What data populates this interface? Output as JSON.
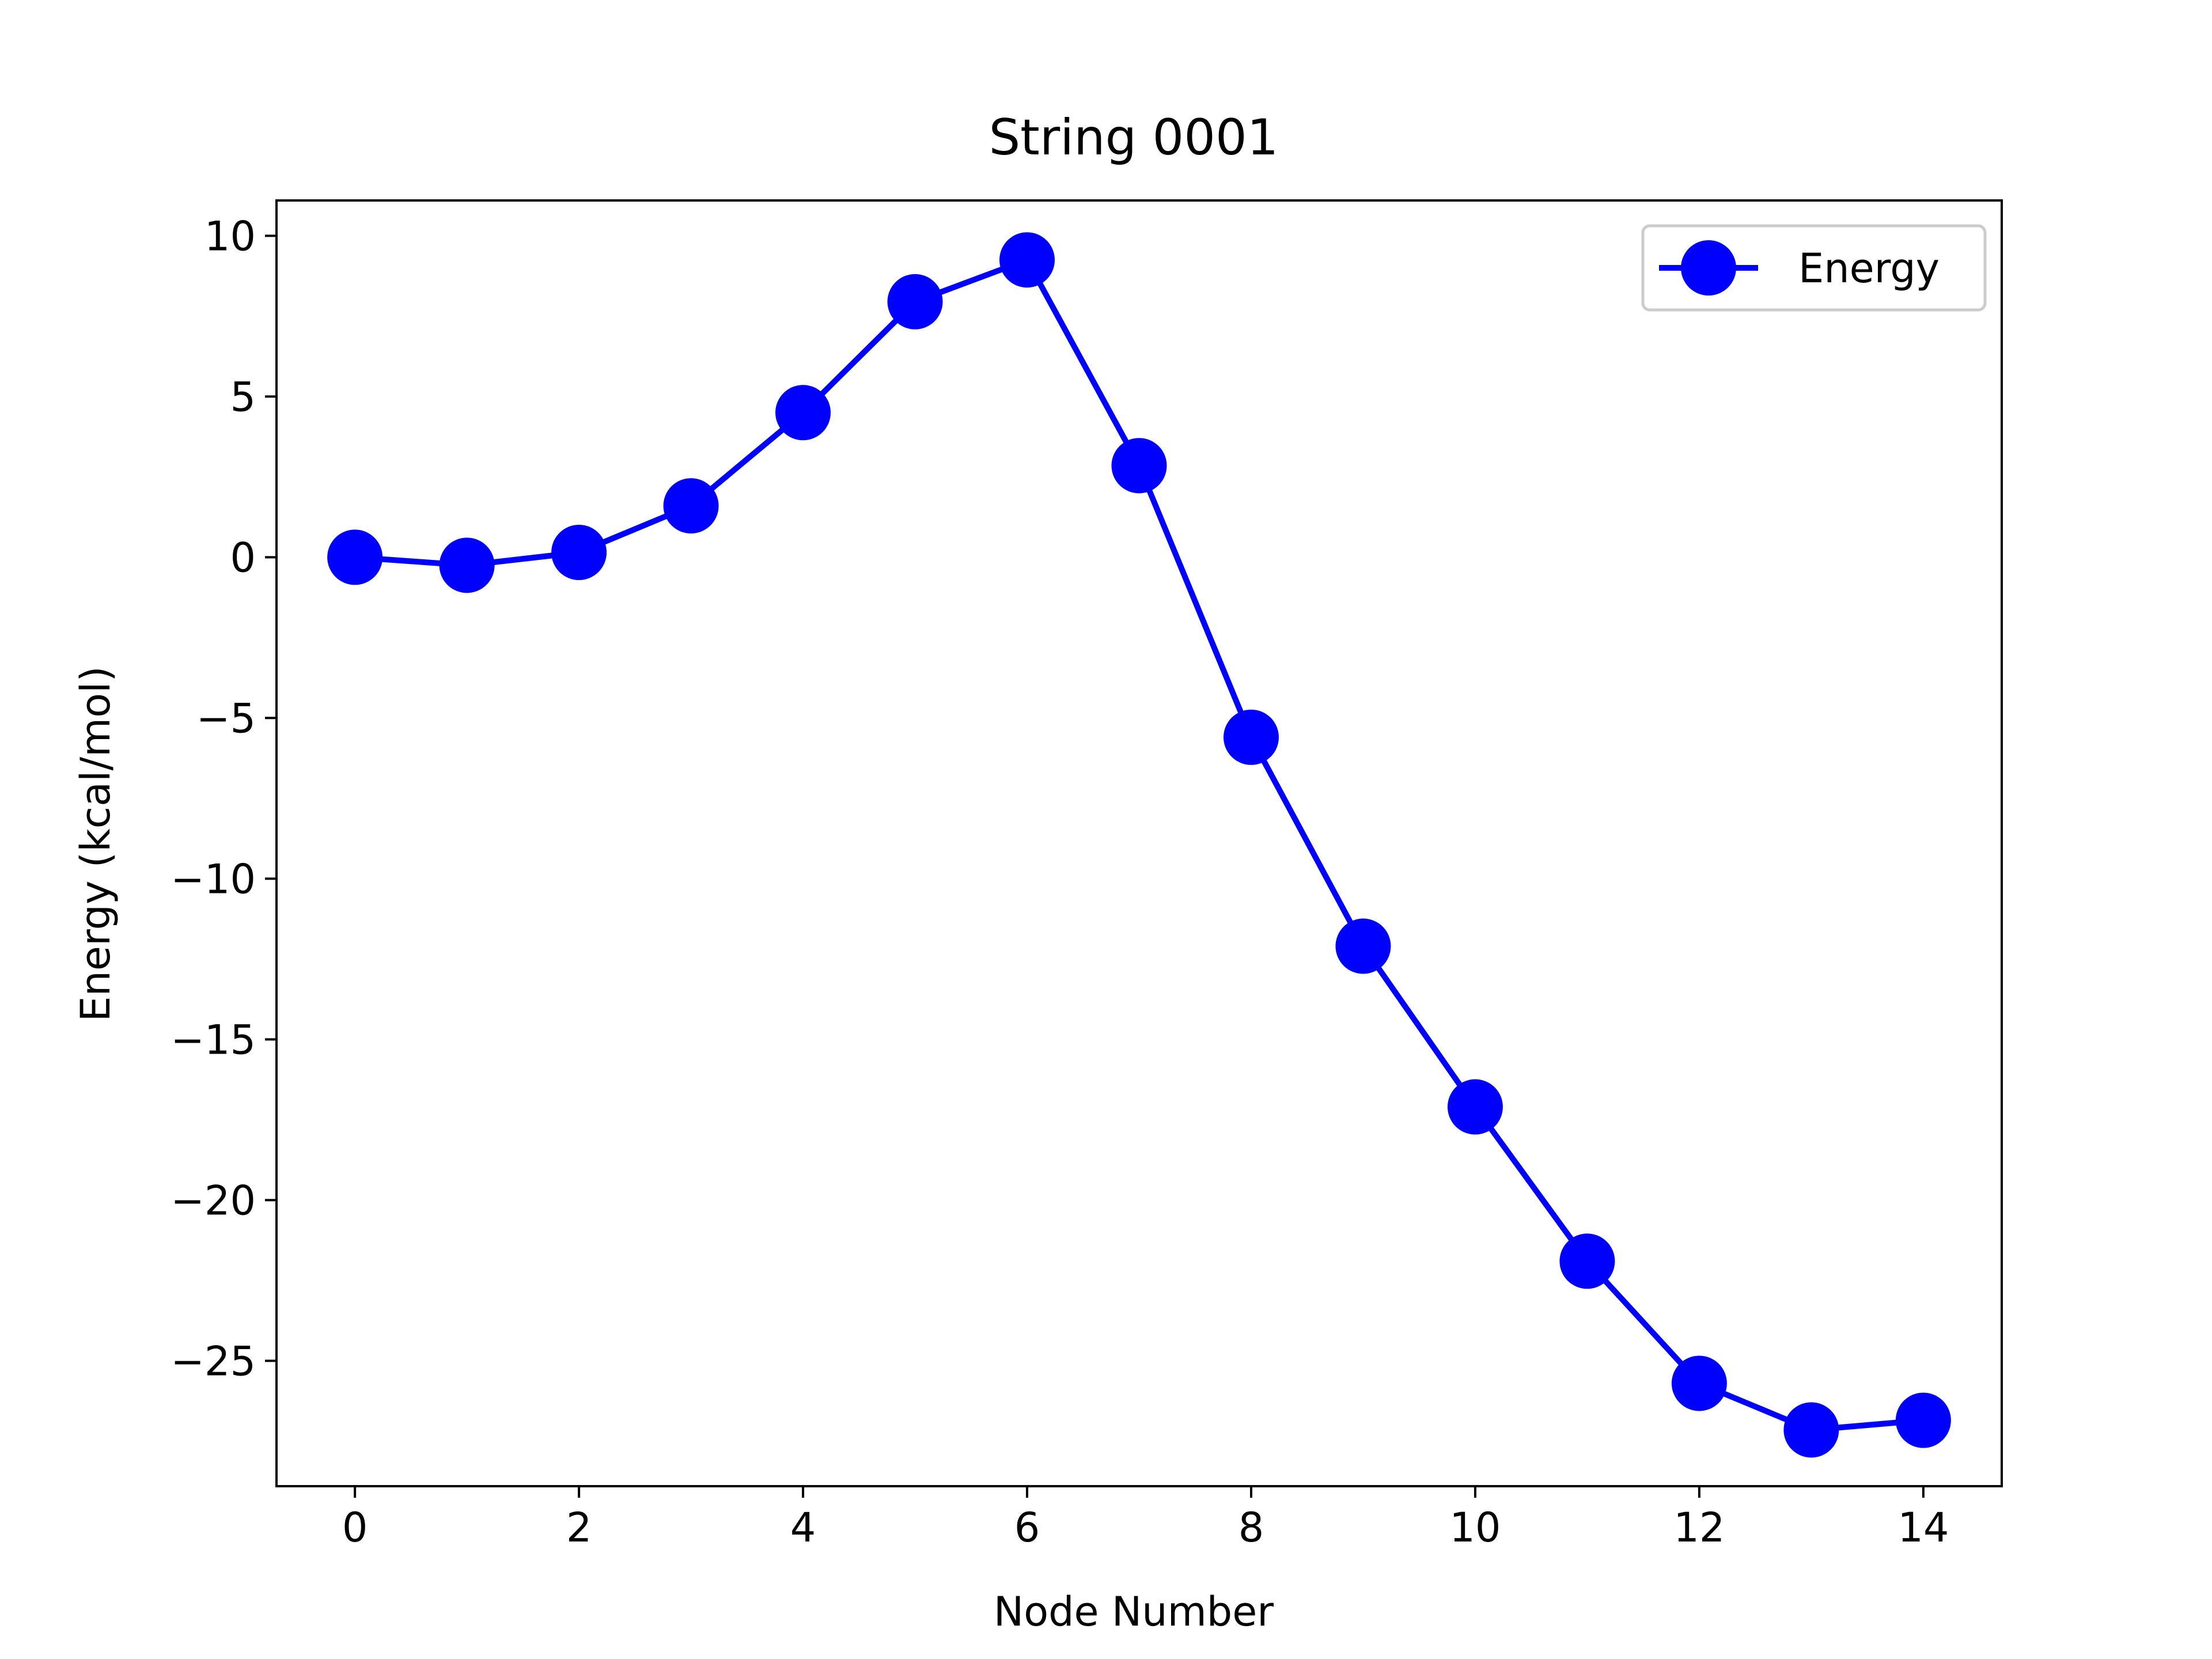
{
  "chart_data": {
    "type": "line",
    "title": "String 0001",
    "xlabel": "Node Number",
    "ylabel": "Energy (kcal/mol)",
    "xlim": [
      -0.7,
      14.7
    ],
    "ylim": [
      -28.9,
      11.1
    ],
    "x_ticks": [
      0,
      2,
      4,
      6,
      8,
      10,
      12,
      14
    ],
    "x_tick_labels": [
      "0",
      "2",
      "4",
      "6",
      "8",
      "10",
      "12",
      "14"
    ],
    "y_ticks": [
      10,
      5,
      0,
      -5,
      -10,
      -15,
      -20,
      -25
    ],
    "y_tick_labels": [
      "10",
      "5",
      "0",
      "−5",
      "−10",
      "−15",
      "−20",
      "−25"
    ],
    "legend": {
      "position": "top-right",
      "entries": [
        "Energy"
      ]
    },
    "grid": false,
    "series": [
      {
        "name": "Energy",
        "color": "#0000ff",
        "marker": "circle",
        "x": [
          0,
          1,
          2,
          3,
          4,
          5,
          6,
          7,
          8,
          9,
          10,
          11,
          12,
          13,
          14
        ],
        "values": [
          0.0,
          -0.25,
          0.15,
          1.6,
          4.5,
          7.95,
          9.25,
          2.85,
          -5.6,
          -12.1,
          -17.1,
          -21.9,
          -25.7,
          -27.15,
          -26.85
        ]
      }
    ]
  }
}
